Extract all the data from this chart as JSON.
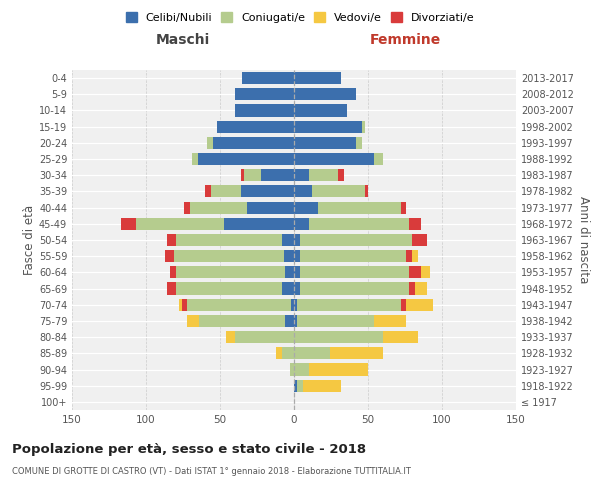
{
  "age_groups": [
    "100+",
    "95-99",
    "90-94",
    "85-89",
    "80-84",
    "75-79",
    "70-74",
    "65-69",
    "60-64",
    "55-59",
    "50-54",
    "45-49",
    "40-44",
    "35-39",
    "30-34",
    "25-29",
    "20-24",
    "15-19",
    "10-14",
    "5-9",
    "0-4"
  ],
  "birth_years": [
    "≤ 1917",
    "1918-1922",
    "1923-1927",
    "1928-1932",
    "1933-1937",
    "1938-1942",
    "1943-1947",
    "1948-1952",
    "1953-1957",
    "1958-1962",
    "1963-1967",
    "1968-1972",
    "1973-1977",
    "1978-1982",
    "1983-1987",
    "1988-1992",
    "1993-1997",
    "1998-2002",
    "2003-2007",
    "2008-2012",
    "2013-2017"
  ],
  "maschi": {
    "celibi": [
      0,
      0,
      0,
      0,
      0,
      6,
      2,
      8,
      6,
      7,
      8,
      47,
      32,
      36,
      22,
      65,
      55,
      52,
      40,
      40,
      35
    ],
    "coniugati": [
      0,
      0,
      3,
      8,
      40,
      58,
      70,
      72,
      74,
      74,
      72,
      60,
      38,
      20,
      12,
      4,
      4,
      0,
      0,
      0,
      0
    ],
    "vedovi": [
      0,
      0,
      0,
      4,
      6,
      8,
      2,
      0,
      0,
      0,
      0,
      0,
      0,
      0,
      0,
      0,
      0,
      0,
      0,
      0,
      0
    ],
    "divorziati": [
      0,
      0,
      0,
      0,
      0,
      0,
      4,
      6,
      4,
      6,
      6,
      10,
      4,
      4,
      2,
      0,
      0,
      0,
      0,
      0,
      0
    ]
  },
  "femmine": {
    "nubili": [
      0,
      2,
      0,
      0,
      0,
      2,
      2,
      4,
      4,
      4,
      4,
      10,
      16,
      12,
      10,
      54,
      42,
      46,
      36,
      42,
      32
    ],
    "coniugate": [
      0,
      4,
      10,
      24,
      60,
      52,
      70,
      74,
      74,
      72,
      76,
      68,
      56,
      36,
      20,
      6,
      4,
      2,
      0,
      0,
      0
    ],
    "vedove": [
      0,
      26,
      40,
      36,
      24,
      22,
      18,
      8,
      6,
      4,
      0,
      0,
      0,
      0,
      0,
      0,
      0,
      0,
      0,
      0,
      0
    ],
    "divorziate": [
      0,
      0,
      0,
      0,
      0,
      0,
      4,
      4,
      8,
      4,
      10,
      8,
      4,
      2,
      4,
      0,
      0,
      0,
      0,
      0,
      0
    ]
  },
  "colors": {
    "celibi": "#3c6fad",
    "coniugati": "#b5cc8e",
    "vedovi": "#f5c842",
    "divorziati": "#d93b3b"
  },
  "title": "Popolazione per età, sesso e stato civile - 2018",
  "subtitle": "COMUNE DI GROTTE DI CASTRO (VT) - Dati ISTAT 1° gennaio 2018 - Elaborazione TUTTITALIA.IT",
  "xlabel_left": "Maschi",
  "xlabel_right": "Femmine",
  "ylabel_left": "Fasce di età",
  "ylabel_right": "Anni di nascita",
  "xlim": 150,
  "bg_color": "#f0f0f0",
  "legend_labels": [
    "Celibi/Nubili",
    "Coniugati/e",
    "Vedovi/e",
    "Divorziati/e"
  ]
}
